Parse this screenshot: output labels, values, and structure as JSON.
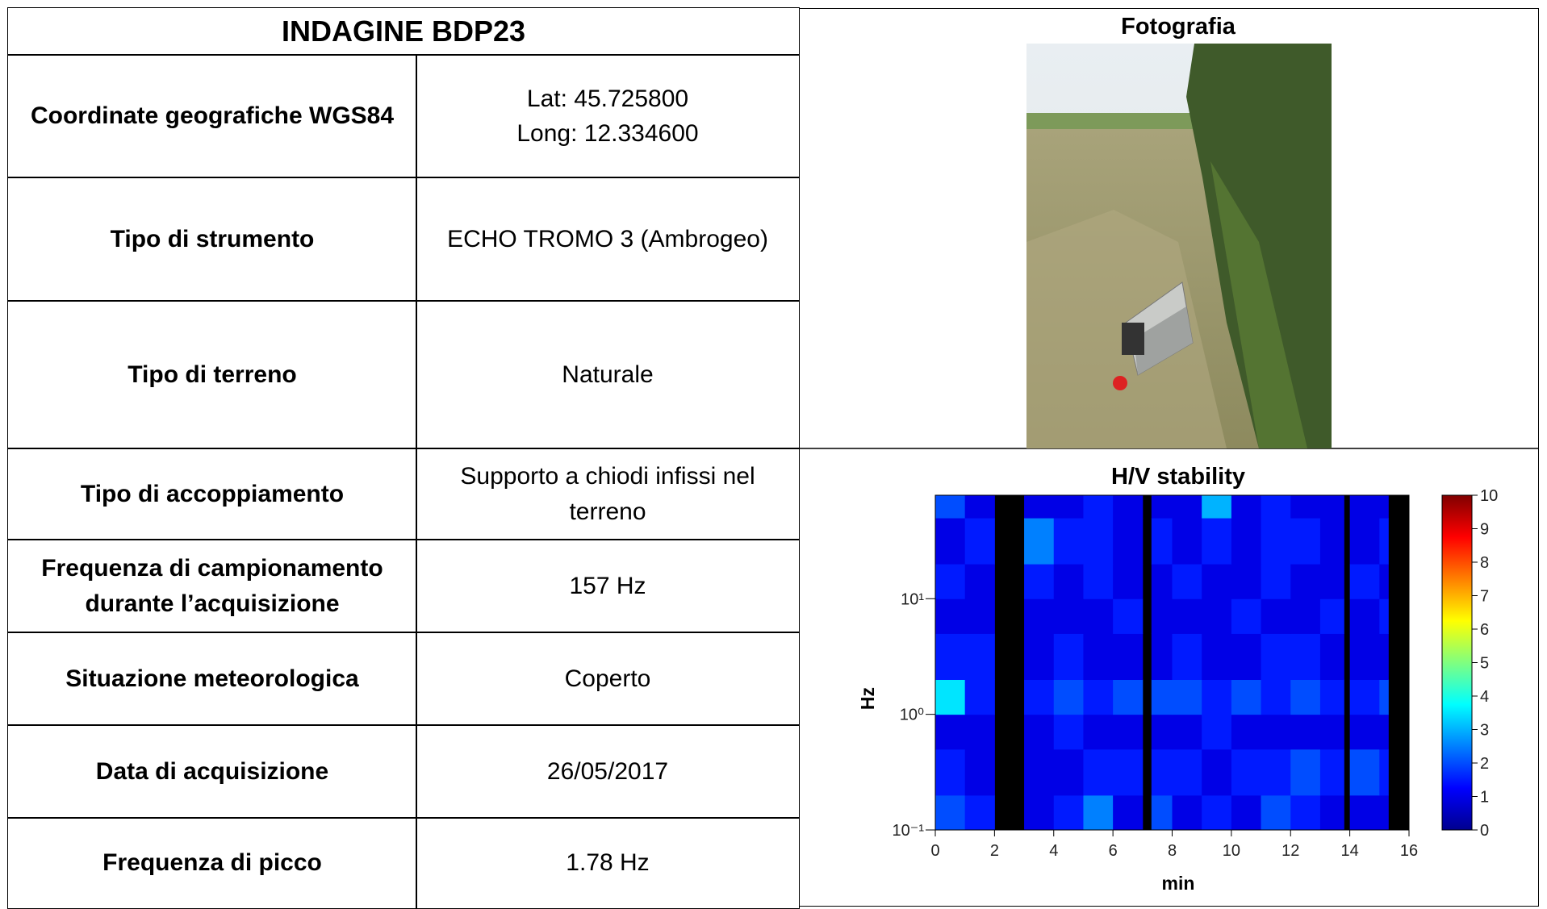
{
  "table": {
    "title": "INDAGINE BDP23",
    "rows": [
      {
        "label": "Coordinate geografiche WGS84",
        "value": "Lat: 45.725800\nLong: 12.334600"
      },
      {
        "label": "Tipo di strumento",
        "value": "ECHO TROMO 3 (Ambrogeo)"
      },
      {
        "label": "Tipo di terreno",
        "value": "Naturale"
      },
      {
        "label": "Tipo di accoppiamento",
        "value": "Supporto a chiodi infissi nel terreno"
      },
      {
        "label": "Frequenza di campionamento durante l’acquisizione",
        "value": "157 Hz"
      },
      {
        "label": "Situazione meteorologica",
        "value": "Coperto"
      },
      {
        "label": "Data di acquisizione",
        "value": "26/05/2017"
      },
      {
        "label": "Frequenza di picco",
        "value": "1.78 Hz"
      }
    ]
  },
  "photo": {
    "title": "Fotografia"
  },
  "chart_data": {
    "type": "heatmap",
    "title": "H/V stability",
    "x_label": "min",
    "y_label": "Hz",
    "x": [
      0,
      1,
      2,
      3,
      4,
      5,
      6,
      7,
      7.3,
      8,
      9,
      10,
      11,
      12,
      13,
      13.8,
      14,
      15,
      15.3,
      16
    ],
    "y": [
      0.1,
      0.2,
      0.5,
      1,
      2,
      5,
      10,
      20,
      50,
      78.5
    ],
    "values": [
      [
        2,
        1.5,
        null,
        1,
        1.5,
        2.5,
        1,
        null,
        2,
        1,
        1.5,
        1,
        2,
        1.5,
        1,
        null,
        1,
        1,
        null
      ],
      [
        1.5,
        1,
        null,
        1,
        1,
        1.5,
        1.5,
        null,
        1.5,
        1.5,
        1,
        1.5,
        1.5,
        2,
        1.5,
        null,
        2,
        1.5,
        null
      ],
      [
        1,
        1,
        null,
        1,
        1.5,
        1,
        1,
        null,
        1,
        1,
        1.5,
        1,
        1,
        1,
        1,
        null,
        1,
        1,
        null
      ],
      [
        3.5,
        1.5,
        null,
        1.5,
        2,
        1.5,
        2,
        null,
        2,
        2,
        1.5,
        2,
        1.5,
        2,
        1.5,
        null,
        1.5,
        2,
        null
      ],
      [
        1.5,
        1.5,
        null,
        1,
        1.5,
        1,
        1,
        null,
        1,
        1.5,
        1,
        1,
        1.5,
        1.5,
        1,
        null,
        1,
        1,
        null
      ],
      [
        1,
        1,
        null,
        1,
        1,
        1,
        1.5,
        null,
        1,
        1,
        1,
        1.5,
        1,
        1,
        1.5,
        null,
        1,
        1.5,
        null
      ],
      [
        1.5,
        1,
        null,
        1.5,
        1,
        1.5,
        1,
        null,
        1,
        1.5,
        1,
        1,
        1.5,
        1,
        1,
        null,
        1.5,
        1,
        null
      ],
      [
        1,
        1.5,
        null,
        2.5,
        1.5,
        1.5,
        1,
        null,
        1.5,
        1,
        1.5,
        1,
        1.5,
        1.5,
        1,
        null,
        1,
        1.5,
        null
      ],
      [
        2,
        1,
        null,
        1,
        1,
        1.5,
        1,
        null,
        1,
        1,
        3,
        1,
        1.5,
        1,
        1,
        null,
        1,
        1,
        null
      ]
    ],
    "xlim": [
      0,
      16
    ],
    "xticks": [
      0,
      2,
      4,
      6,
      8,
      10,
      12,
      14,
      16
    ],
    "ylim": [
      0.1,
      78.5
    ],
    "log_y": true,
    "yticks": [
      {
        "value": 0.1,
        "label": "10⁻¹"
      },
      {
        "value": 1,
        "label": "10⁰"
      },
      {
        "value": 10,
        "label": "10¹"
      }
    ],
    "clim": [
      0,
      10
    ],
    "colorbar_ticks": [
      0,
      1,
      2,
      3,
      4,
      5,
      6,
      7,
      8,
      9,
      10
    ],
    "colormap": "jet"
  }
}
